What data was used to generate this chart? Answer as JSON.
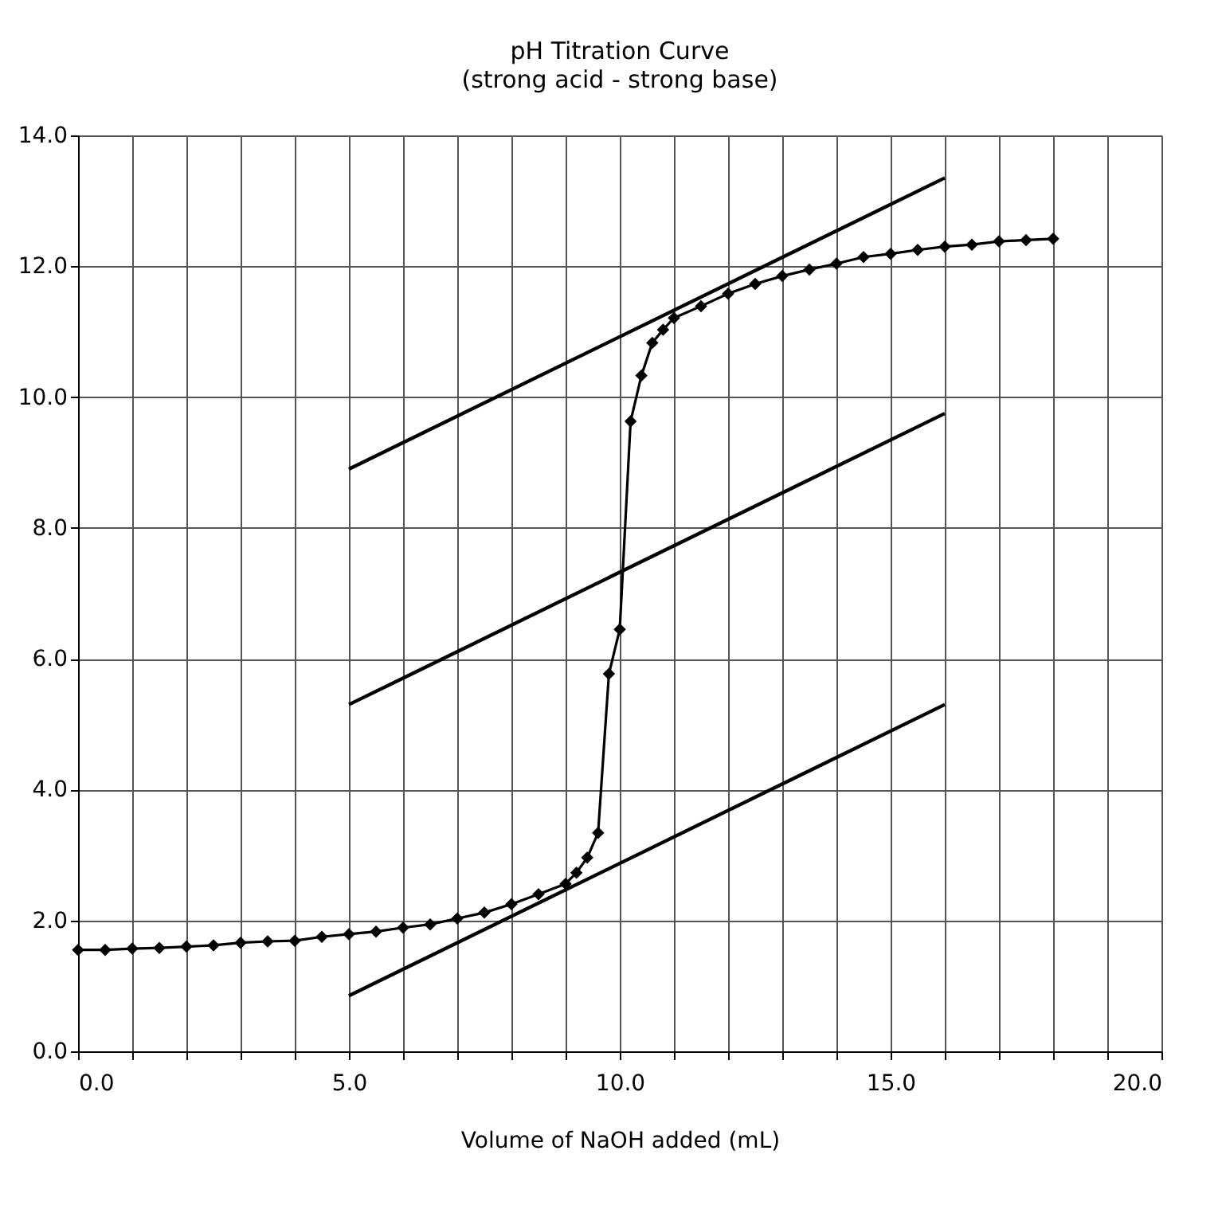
{
  "chart_data": {
    "type": "line",
    "title": "pH Titration Curve",
    "subtitle": "(strong acid - strong base)",
    "xlabel": "Volume of NaOH added (mL)",
    "xlim": [
      0,
      20
    ],
    "ylim": [
      0,
      14
    ],
    "xticks": [
      {
        "value": 0,
        "label": "0.0"
      },
      {
        "value": 1,
        "label": null
      },
      {
        "value": 2,
        "label": null
      },
      {
        "value": 3,
        "label": null
      },
      {
        "value": 4,
        "label": null
      },
      {
        "value": 5,
        "label": "5.0"
      },
      {
        "value": 6,
        "label": null
      },
      {
        "value": 7,
        "label": null
      },
      {
        "value": 8,
        "label": null
      },
      {
        "value": 9,
        "label": null
      },
      {
        "value": 10,
        "label": "10.0"
      },
      {
        "value": 11,
        "label": null
      },
      {
        "value": 12,
        "label": null
      },
      {
        "value": 13,
        "label": null
      },
      {
        "value": 14,
        "label": null
      },
      {
        "value": 15,
        "label": "15.0"
      },
      {
        "value": 16,
        "label": null
      },
      {
        "value": 17,
        "label": null
      },
      {
        "value": 18,
        "label": null
      },
      {
        "value": 19,
        "label": null
      },
      {
        "value": 20,
        "label": "20.0"
      }
    ],
    "yticks": [
      {
        "value": 0,
        "label": "0.0"
      },
      {
        "value": 2,
        "label": "2.0"
      },
      {
        "value": 4,
        "label": "4.0"
      },
      {
        "value": 6,
        "label": "6.0"
      },
      {
        "value": 8,
        "label": "8.0"
      },
      {
        "value": 10,
        "label": "10.0"
      },
      {
        "value": 12,
        "label": "12.0"
      },
      {
        "value": 14,
        "label": "14.0"
      }
    ],
    "grid": true,
    "line_style": "solid",
    "series": [
      {
        "color": "#000000",
        "marker": "diamond",
        "x": [
          0,
          0.5,
          1,
          1.5,
          2,
          2.5,
          3,
          3.5,
          4,
          4.5,
          5,
          5.5,
          6,
          6.5,
          7,
          7.5,
          8,
          8.5,
          9,
          9.2,
          9.4,
          9.6,
          9.8,
          10,
          10.2,
          10.4,
          10.6,
          10.8,
          11,
          11.5,
          12,
          12.5,
          13,
          13.5,
          14,
          14.5,
          15,
          15.5,
          16,
          16.5,
          17,
          17.5,
          18
        ],
        "values": [
          1.55,
          1.55,
          1.57,
          1.58,
          1.6,
          1.62,
          1.66,
          1.68,
          1.69,
          1.75,
          1.79,
          1.83,
          1.89,
          1.94,
          2.03,
          2.12,
          2.25,
          2.4,
          2.56,
          2.73,
          2.96,
          3.34,
          5.77,
          6.45,
          9.63,
          10.33,
          10.83,
          11.03,
          11.21,
          11.39,
          11.58,
          11.73,
          11.85,
          11.95,
          12.04,
          12.14,
          12.19,
          12.25,
          12.3,
          12.33,
          12.38,
          12.4,
          12.42
        ]
      },
      {
        "color": "#000000",
        "marker": "none",
        "x": [
          5,
          16
        ],
        "values": [
          8.9,
          13.35
        ]
      },
      {
        "color": "#000000",
        "marker": "none",
        "x": [
          5,
          16
        ],
        "values": [
          5.3,
          9.75
        ]
      },
      {
        "color": "#000000",
        "marker": "none",
        "x": [
          5,
          16
        ],
        "values": [
          0.85,
          5.3
        ]
      }
    ]
  }
}
